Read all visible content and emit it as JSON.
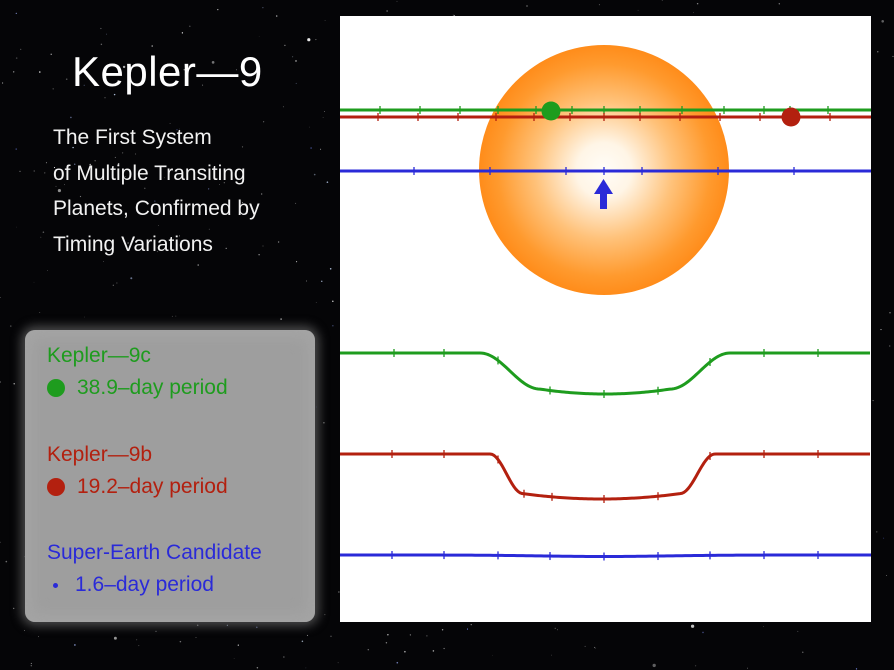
{
  "title": "Kepler—9",
  "subtitle_lines": [
    "The First System",
    "of Multiple Transiting",
    "Planets, Confirmed by",
    "Timing Variations"
  ],
  "colors": {
    "kepler_9c": "#1e9c1e",
    "kepler_9b": "#b3200f",
    "super_earth": "#2a2ad8",
    "star_core": "#fffdf8",
    "star_edge": "#ff8c1a"
  },
  "legend": [
    {
      "name": "Kepler—9c",
      "period": "38.9–day period",
      "color": "#1e9c1e",
      "marker": "large-dot"
    },
    {
      "name": "Kepler—9b",
      "period": "19.2–day period",
      "color": "#b3200f",
      "marker": "large-dot"
    },
    {
      "name": "Super-Earth Candidate",
      "period": "1.6–day period",
      "color": "#2a2ad8",
      "marker": "small-dot"
    }
  ],
  "icons": {
    "star": "star-disk-icon",
    "arrow": "up-arrow-icon"
  }
}
